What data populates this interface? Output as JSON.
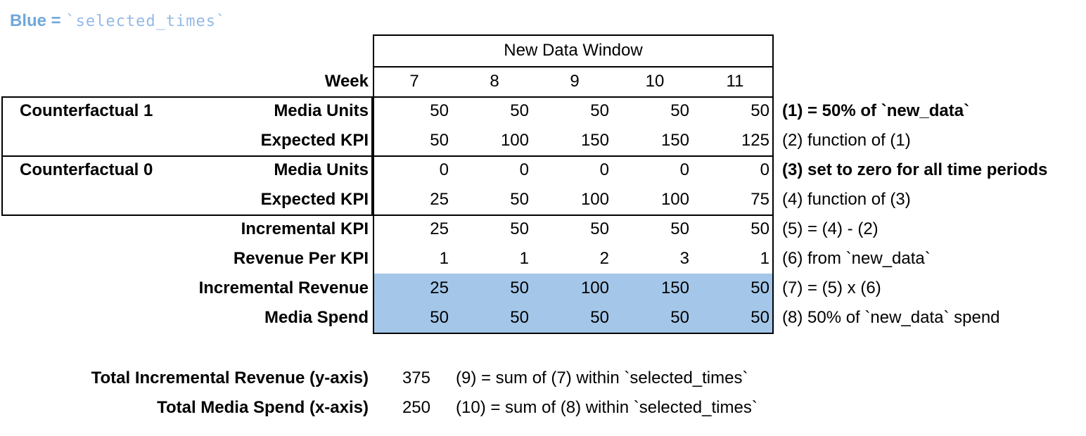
{
  "legend": {
    "prefix": "Blue = ",
    "code": "`selected_times`"
  },
  "colors": {
    "highlight_blue": "#A4C7E9",
    "legend_blue": "#6FA8DC",
    "legend_code_blue": "#93B9E6",
    "border": "#000000",
    "background": "#ffffff"
  },
  "table": {
    "header": "New Data Window",
    "week_label": "Week",
    "weeks": [
      "7",
      "8",
      "9",
      "10",
      "11"
    ],
    "rows": [
      {
        "group": "Counterfactual 1",
        "label": "Media Units",
        "values": [
          "50",
          "50",
          "50",
          "50",
          "50"
        ],
        "note": "(1) = 50% of `new_data`"
      },
      {
        "group": "",
        "label": "Expected KPI",
        "values": [
          "50",
          "100",
          "150",
          "150",
          "125"
        ],
        "note": "(2) function of (1)"
      },
      {
        "group": "Counterfactual 0",
        "label": "Media Units",
        "values": [
          "0",
          "0",
          "0",
          "0",
          "0"
        ],
        "note": "(3) set to zero for all time periods"
      },
      {
        "group": "",
        "label": "Expected KPI",
        "values": [
          "25",
          "50",
          "100",
          "100",
          "75"
        ],
        "note": "(4) function of (3)"
      },
      {
        "group": "",
        "label": "Incremental KPI",
        "values": [
          "25",
          "50",
          "50",
          "50",
          "50"
        ],
        "note": "(5) = (4) - (2)"
      },
      {
        "group": "",
        "label": "Revenue Per KPI",
        "values": [
          "1",
          "1",
          "2",
          "3",
          "1"
        ],
        "note": "(6) from `new_data`"
      },
      {
        "group": "",
        "label": "Incremental Revenue",
        "values": [
          "25",
          "50",
          "100",
          "150",
          "50"
        ],
        "note": "(7) = (5) x (6)"
      },
      {
        "group": "",
        "label": "Media Spend",
        "values": [
          "50",
          "50",
          "50",
          "50",
          "50"
        ],
        "note": "(8) 50% of `new_data` spend"
      }
    ]
  },
  "summary": [
    {
      "label": "Total Incremental Revenue (y-axis)",
      "value": "375",
      "note": "(9) = sum of (7) within `selected_times`"
    },
    {
      "label": "Total Media Spend (x-axis)",
      "value": "250",
      "note": "(10) = sum of (8) within `selected_times`"
    }
  ]
}
